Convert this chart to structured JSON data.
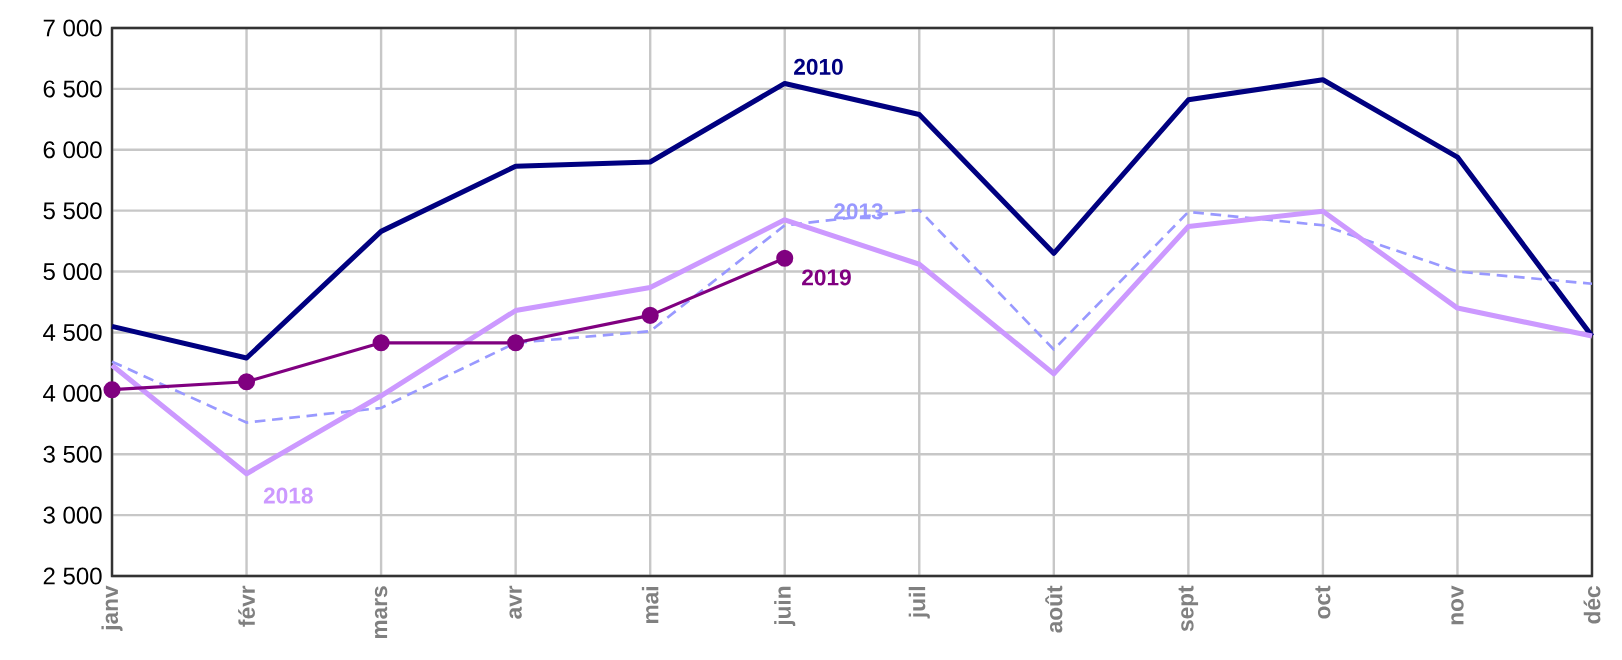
{
  "chart_data": {
    "type": "line",
    "categories": [
      "janv",
      "févr",
      "mars",
      "avr",
      "mai",
      "juin",
      "juil",
      "août",
      "sept",
      "oct",
      "nov",
      "déc"
    ],
    "series": [
      {
        "name": "2010",
        "color": "#000080",
        "line_style": "solid",
        "values": [
          4550,
          4290,
          5330,
          5865,
          5900,
          6545,
          6290,
          5150,
          6410,
          6575,
          5940,
          4470
        ]
      },
      {
        "name": "2013",
        "color": "#9999ff",
        "line_style": "dashed",
        "values": [
          4260,
          3760,
          3880,
          4415,
          4510,
          5380,
          5505,
          4360,
          5490,
          5380,
          5000,
          4900
        ]
      },
      {
        "name": "2018",
        "color": "#cc99ff",
        "line_style": "solid",
        "values": [
          4230,
          3340,
          3980,
          4680,
          4870,
          5425,
          5060,
          4160,
          5370,
          5495,
          4700,
          4470
        ]
      },
      {
        "name": "2019",
        "color": "#800080",
        "line_style": "solid",
        "marker": "circle",
        "values": [
          4030,
          4095,
          4415,
          4415,
          4640,
          5110,
          null,
          null,
          null,
          null,
          null,
          null
        ]
      }
    ],
    "ylim": [
      2500,
      7000
    ],
    "yticks": [
      {
        "value": 2500,
        "label": "2 500"
      },
      {
        "value": 3000,
        "label": "3 000"
      },
      {
        "value": 3500,
        "label": "3 500"
      },
      {
        "value": 4000,
        "label": "4 000"
      },
      {
        "value": 4500,
        "label": "4 500"
      },
      {
        "value": 5000,
        "label": "5 000"
      },
      {
        "value": 5500,
        "label": "5 500"
      },
      {
        "value": 6000,
        "label": "6 000"
      },
      {
        "value": 6500,
        "label": "6 500"
      },
      {
        "value": 7000,
        "label": "7 000"
      }
    ],
    "grid": true,
    "legend": false
  }
}
